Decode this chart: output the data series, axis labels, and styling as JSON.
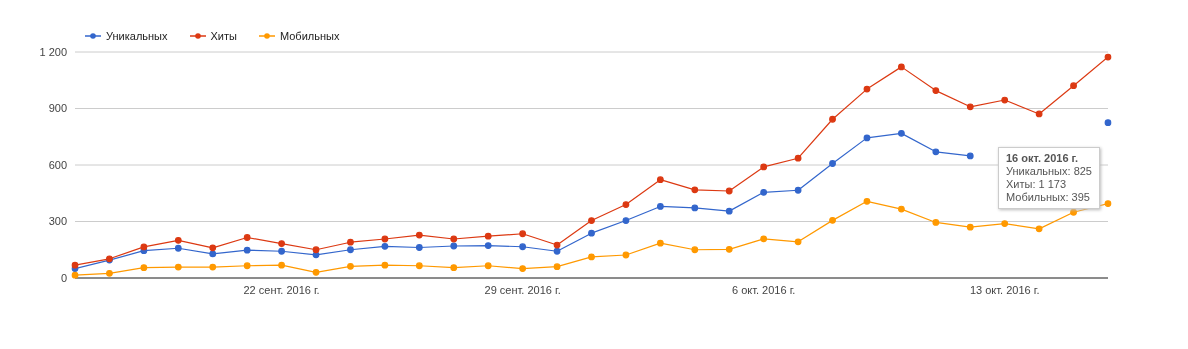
{
  "chart_data": {
    "type": "line",
    "x": [
      "2016-09-16",
      "2016-09-17",
      "2016-09-18",
      "2016-09-19",
      "2016-09-20",
      "2016-09-21",
      "2016-09-22",
      "2016-09-23",
      "2016-09-24",
      "2016-09-25",
      "2016-09-26",
      "2016-09-27",
      "2016-09-28",
      "2016-09-29",
      "2016-09-30",
      "2016-10-01",
      "2016-10-02",
      "2016-10-03",
      "2016-10-04",
      "2016-10-05",
      "2016-10-06",
      "2016-10-07",
      "2016-10-08",
      "2016-10-09",
      "2016-10-10",
      "2016-10-11",
      "2016-10-12",
      "2016-10-13",
      "2016-10-14",
      "2016-10-15",
      "2016-10-16"
    ],
    "series": [
      {
        "name": "Уникальных",
        "color": "#3366cc",
        "values": [
          50,
          95,
          145,
          158,
          128,
          148,
          142,
          123,
          150,
          168,
          162,
          170,
          172,
          166,
          142,
          238,
          305,
          380,
          372,
          355,
          455,
          466,
          608,
          744,
          768,
          670,
          648,
          null,
          null,
          null,
          825
        ]
      },
      {
        "name": "Хиты",
        "color": "#dc3912",
        "values": [
          68,
          102,
          165,
          200,
          160,
          215,
          183,
          150,
          190,
          207,
          228,
          207,
          222,
          235,
          175,
          305,
          390,
          522,
          468,
          462,
          590,
          636,
          843,
          1003,
          1121,
          995,
          909,
          945,
          871,
          1021,
          1173
        ]
      },
      {
        "name": "Мобильных",
        "color": "#ff9900",
        "values": [
          15,
          25,
          55,
          58,
          58,
          65,
          68,
          30,
          62,
          68,
          65,
          55,
          65,
          50,
          60,
          112,
          122,
          185,
          150,
          152,
          208,
          192,
          306,
          407,
          366,
          295,
          270,
          289,
          261,
          349,
          395
        ]
      }
    ],
    "xlim": [
      "2016-09-16",
      "2016-10-16"
    ],
    "xticks": [
      {
        "value": "2016-09-22",
        "label": "22 сент. 2016 г."
      },
      {
        "value": "2016-09-29",
        "label": "29 сент. 2016 г."
      },
      {
        "value": "2016-10-06",
        "label": "6 окт. 2016 г."
      },
      {
        "value": "2016-10-13",
        "label": "13 окт. 2016 г."
      }
    ],
    "ylim": [
      0,
      1200
    ],
    "yticks": [
      0,
      300,
      600,
      900,
      {
        "value": 1200,
        "label": "1 200"
      }
    ],
    "grid": "y",
    "legend": "top left",
    "marker": "circle",
    "line_style": "solid",
    "annotations": [
      "16 окт. 2016 г.",
      "Уникальных: 825",
      "Хиты: 1 173",
      "Мобильных: 395"
    ]
  }
}
